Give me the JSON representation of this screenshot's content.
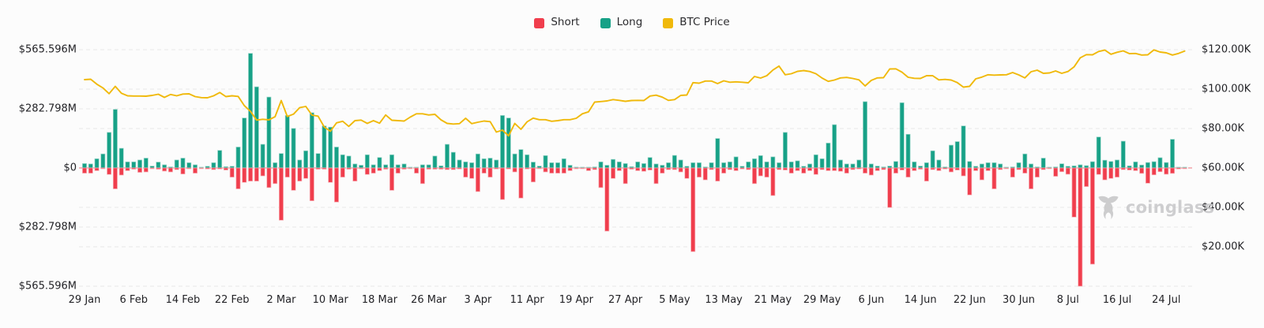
{
  "legend": {
    "items": [
      {
        "id": "short",
        "label": "Short",
        "color": "#F03E4D"
      },
      {
        "id": "long",
        "label": "Long",
        "color": "#17A187"
      },
      {
        "id": "btc_price",
        "label": "BTC Price",
        "color": "#F0B90B"
      }
    ]
  },
  "axes": {
    "left_ticks": [
      "$565.596M",
      "$282.798M",
      "$0",
      "$282.798M",
      "$565.596M"
    ],
    "right_ticks": [
      "$120.00K",
      "$100.00K",
      "$80.00K",
      "$60.00K",
      "$40.00K",
      "$20.00K"
    ],
    "x_ticks": [
      "29 Jan",
      "6 Feb",
      "14 Feb",
      "22 Feb",
      "2 Mar",
      "10 Mar",
      "18 Mar",
      "26 Mar",
      "3 Apr",
      "11 Apr",
      "19 Apr",
      "27 Apr",
      "5 May",
      "13 May",
      "21 May",
      "29 May",
      "6 Jun",
      "14 Jun",
      "22 Jun",
      "30 Jun",
      "8 Jul",
      "16 Jul",
      "24 Jul"
    ]
  },
  "watermark": {
    "text": "coinglass",
    "icon": "bull-logo",
    "color": "#c7c7c9"
  },
  "chart_data": {
    "type": "bar",
    "subtype": "diverging-bars-with-line-overlay",
    "x_spec": [
      [
        "Jan",
        29,
        31
      ],
      [
        "Feb",
        1,
        28
      ],
      [
        "Mar",
        1,
        31
      ],
      [
        "Apr",
        1,
        30
      ],
      [
        "May",
        1,
        31
      ],
      [
        "Jun",
        1,
        30
      ],
      [
        "Jul",
        1,
        27
      ]
    ],
    "x_format": "{day} {month}",
    "left_axis": {
      "title": "Liquidations (USD)",
      "unit": "M",
      "range": [
        -565.596,
        565.596
      ],
      "zero_line_color": "#f2a2a8"
    },
    "right_axis": {
      "title": "BTC Price (USD)",
      "unit": "K",
      "range": [
        0,
        120
      ]
    },
    "grid": {
      "style": "dashed",
      "color": "#e7e7e7"
    },
    "legend_position": "top-center",
    "series": [
      {
        "name": "Long",
        "type": "bar",
        "direction": "up",
        "color": "#17A187",
        "unit": "$M",
        "values": [
          21,
          19,
          44,
          67,
          170,
          280,
          94,
          29,
          29,
          38,
          47,
          9,
          28,
          15,
          5,
          38,
          47,
          25,
          15,
          3,
          8,
          25,
          84,
          6,
          8,
          100,
          239,
          548,
          388,
          113,
          339,
          25,
          69,
          251,
          189,
          38,
          82,
          264,
          69,
          201,
          195,
          100,
          63,
          57,
          19,
          13,
          63,
          15,
          50,
          15,
          63,
          15,
          19,
          3,
          2,
          15,
          15,
          57,
          10,
          113,
          75,
          38,
          29,
          25,
          67,
          44,
          47,
          38,
          251,
          239,
          67,
          88,
          63,
          28,
          9,
          59,
          25,
          25,
          44,
          13,
          4,
          3,
          3,
          5,
          29,
          13,
          41,
          29,
          21,
          6,
          29,
          21,
          50,
          19,
          13,
          25,
          60,
          38,
          8,
          25,
          25,
          5,
          25,
          141,
          25,
          29,
          53,
          8,
          29,
          44,
          59,
          29,
          53,
          25,
          170,
          29,
          34,
          8,
          19,
          63,
          44,
          119,
          207,
          38,
          19,
          19,
          38,
          317,
          19,
          9,
          5,
          9,
          31,
          312,
          161,
          29,
          9,
          25,
          82,
          38,
          5,
          109,
          126,
          201,
          31,
          8,
          19,
          25,
          25,
          19,
          2,
          5,
          25,
          67,
          19,
          5,
          47,
          2,
          5,
          20,
          8,
          10,
          15,
          11,
          30,
          148,
          37,
          31,
          38,
          128,
          10,
          29,
          14,
          26,
          30,
          49,
          26,
          137,
          2,
          1
        ]
      },
      {
        "name": "Short",
        "type": "bar",
        "direction": "down",
        "color": "#F03E4D",
        "unit": "$M",
        "values": [
          25,
          25,
          13,
          4,
          31,
          100,
          34,
          13,
          6,
          21,
          19,
          4,
          6,
          15,
          19,
          8,
          29,
          4,
          25,
          3,
          5,
          8,
          5,
          10,
          44,
          100,
          69,
          63,
          63,
          38,
          94,
          75,
          250,
          44,
          107,
          63,
          50,
          157,
          6,
          6,
          69,
          163,
          44,
          6,
          63,
          4,
          31,
          25,
          13,
          6,
          107,
          25,
          6,
          3,
          25,
          75,
          6,
          6,
          6,
          8,
          8,
          5,
          44,
          50,
          113,
          25,
          44,
          5,
          151,
          5,
          19,
          144,
          5,
          67,
          3,
          19,
          25,
          25,
          25,
          13,
          4,
          3,
          13,
          8,
          94,
          302,
          50,
          13,
          75,
          6,
          13,
          16,
          10,
          75,
          25,
          8,
          8,
          19,
          50,
          400,
          44,
          57,
          8,
          63,
          25,
          8,
          13,
          5,
          8,
          75,
          38,
          44,
          132,
          8,
          10,
          25,
          13,
          25,
          13,
          31,
          8,
          13,
          13,
          16,
          25,
          8,
          5,
          25,
          34,
          13,
          8,
          189,
          25,
          10,
          44,
          13,
          6,
          63,
          8,
          13,
          5,
          19,
          10,
          38,
          129,
          13,
          57,
          13,
          100,
          8,
          2,
          44,
          8,
          25,
          100,
          44,
          8,
          2,
          40,
          18,
          30,
          235,
          565.596,
          89,
          460,
          31,
          57,
          50,
          44,
          8,
          10,
          13,
          26,
          73,
          33,
          18,
          30,
          26,
          5,
          1
        ]
      },
      {
        "name": "BTC Price",
        "type": "line",
        "axis": "right",
        "color": "#F0B90B",
        "unit": "$K",
        "values": [
          104.8,
          105.0,
          102.5,
          100.6,
          97.7,
          101.4,
          97.9,
          96.6,
          96.5,
          96.5,
          96.4,
          96.8,
          97.4,
          95.8,
          97.3,
          96.6,
          97.5,
          97.6,
          96.2,
          95.7,
          95.6,
          96.6,
          98.3,
          96.2,
          96.6,
          96.3,
          91.6,
          88.7,
          84.3,
          84.7,
          84.4,
          86.0,
          94.2,
          86.1,
          87.3,
          90.6,
          91.2,
          86.8,
          86.3,
          80.8,
          78.6,
          82.9,
          83.7,
          81.1,
          84.0,
          84.3,
          82.6,
          84.0,
          82.7,
          86.9,
          84.2,
          84.0,
          83.8,
          85.8,
          87.5,
          87.5,
          86.9,
          87.2,
          84.4,
          82.6,
          82.3,
          82.5,
          85.2,
          82.5,
          83.2,
          83.8,
          83.5,
          78.2,
          79.2,
          76.3,
          82.6,
          79.6,
          83.4,
          85.3,
          84.5,
          84.5,
          83.7,
          84.0,
          84.5,
          84.5,
          85.2,
          87.5,
          88.5,
          93.4,
          93.7,
          94.0,
          94.7,
          94.3,
          93.8,
          94.2,
          94.3,
          94.2,
          96.5,
          96.9,
          95.9,
          94.3,
          94.7,
          96.8,
          97.0,
          103.3,
          103.0,
          104.1,
          104.1,
          102.8,
          104.2,
          103.5,
          103.7,
          103.5,
          103.2,
          106.4,
          105.6,
          106.8,
          109.7,
          111.7,
          107.3,
          107.8,
          109.0,
          109.4,
          108.9,
          107.8,
          105.6,
          103.9,
          104.6,
          105.7,
          105.9,
          105.4,
          104.7,
          101.6,
          104.4,
          105.7,
          105.8,
          110.2,
          110.3,
          108.6,
          106.0,
          105.5,
          105.4,
          106.8,
          106.8,
          104.7,
          104.9,
          104.6,
          103.3,
          101.0,
          101.4,
          105.2,
          106.1,
          107.3,
          107.1,
          107.2,
          107.3,
          108.4,
          107.2,
          105.7,
          108.8,
          109.6,
          108.0,
          108.2,
          109.2,
          108.0,
          108.9,
          111.3,
          115.9,
          117.5,
          117.4,
          119.1,
          119.8,
          117.7,
          118.7,
          119.4,
          118.0,
          118.1,
          117.3,
          117.4,
          119.9,
          118.8,
          118.4,
          117.3,
          118.1,
          119.3
        ]
      }
    ]
  }
}
